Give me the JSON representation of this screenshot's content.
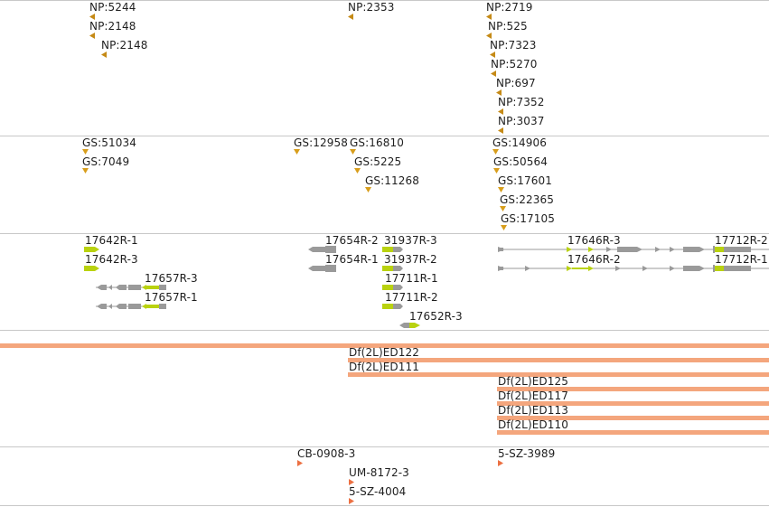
{
  "colors": {
    "np_marker": "#c58a16",
    "gs_marker": "#d89e1c",
    "gene_body": "#9a9a9a",
    "gene_exon": "#b9d20f",
    "deletion_band": "#f4a67d",
    "insertion_marker": "#ec7042",
    "divider": "#c8c8c8"
  },
  "np_track": {
    "labels": [
      "NP:5244",
      "NP:2148",
      "NP:2148",
      "NP:2353",
      "NP:2719",
      "NP:525",
      "NP:7323",
      "NP:5270",
      "NP:697",
      "NP:7352",
      "NP:3037"
    ],
    "marker_icon": "triangle-left-icon"
  },
  "gs_track": {
    "labels": [
      "GS:51034",
      "GS:7049",
      "GS:12958",
      "GS:16810",
      "GS:5225",
      "GS:11268",
      "GS:14906",
      "GS:50564",
      "GS:17601",
      "GS:22365",
      "GS:17105"
    ],
    "marker_icon": "triangle-down-icon"
  },
  "gene_track": {
    "labels": [
      "17642R-1",
      "17642R-3",
      "17657R-3",
      "17657R-1",
      "17654R-2",
      "17654R-1",
      "31937R-3",
      "31937R-2",
      "17711R-1",
      "17711R-2",
      "17652R-3",
      "17646R-3",
      "17646R-2",
      "17712R-2",
      "17712R-1"
    ]
  },
  "deficiency_track": {
    "labels": [
      "Df(2L)ED122",
      "Df(2L)ED111",
      "Df(2L)ED125",
      "Df(2L)ED117",
      "Df(2L)ED113",
      "Df(2L)ED110"
    ]
  },
  "insertion_track": {
    "labels": [
      "CB-0908-3",
      "UM-8172-3",
      "5-SZ-4004",
      "5-SZ-3989"
    ],
    "marker_icon": "triangle-right-icon"
  }
}
